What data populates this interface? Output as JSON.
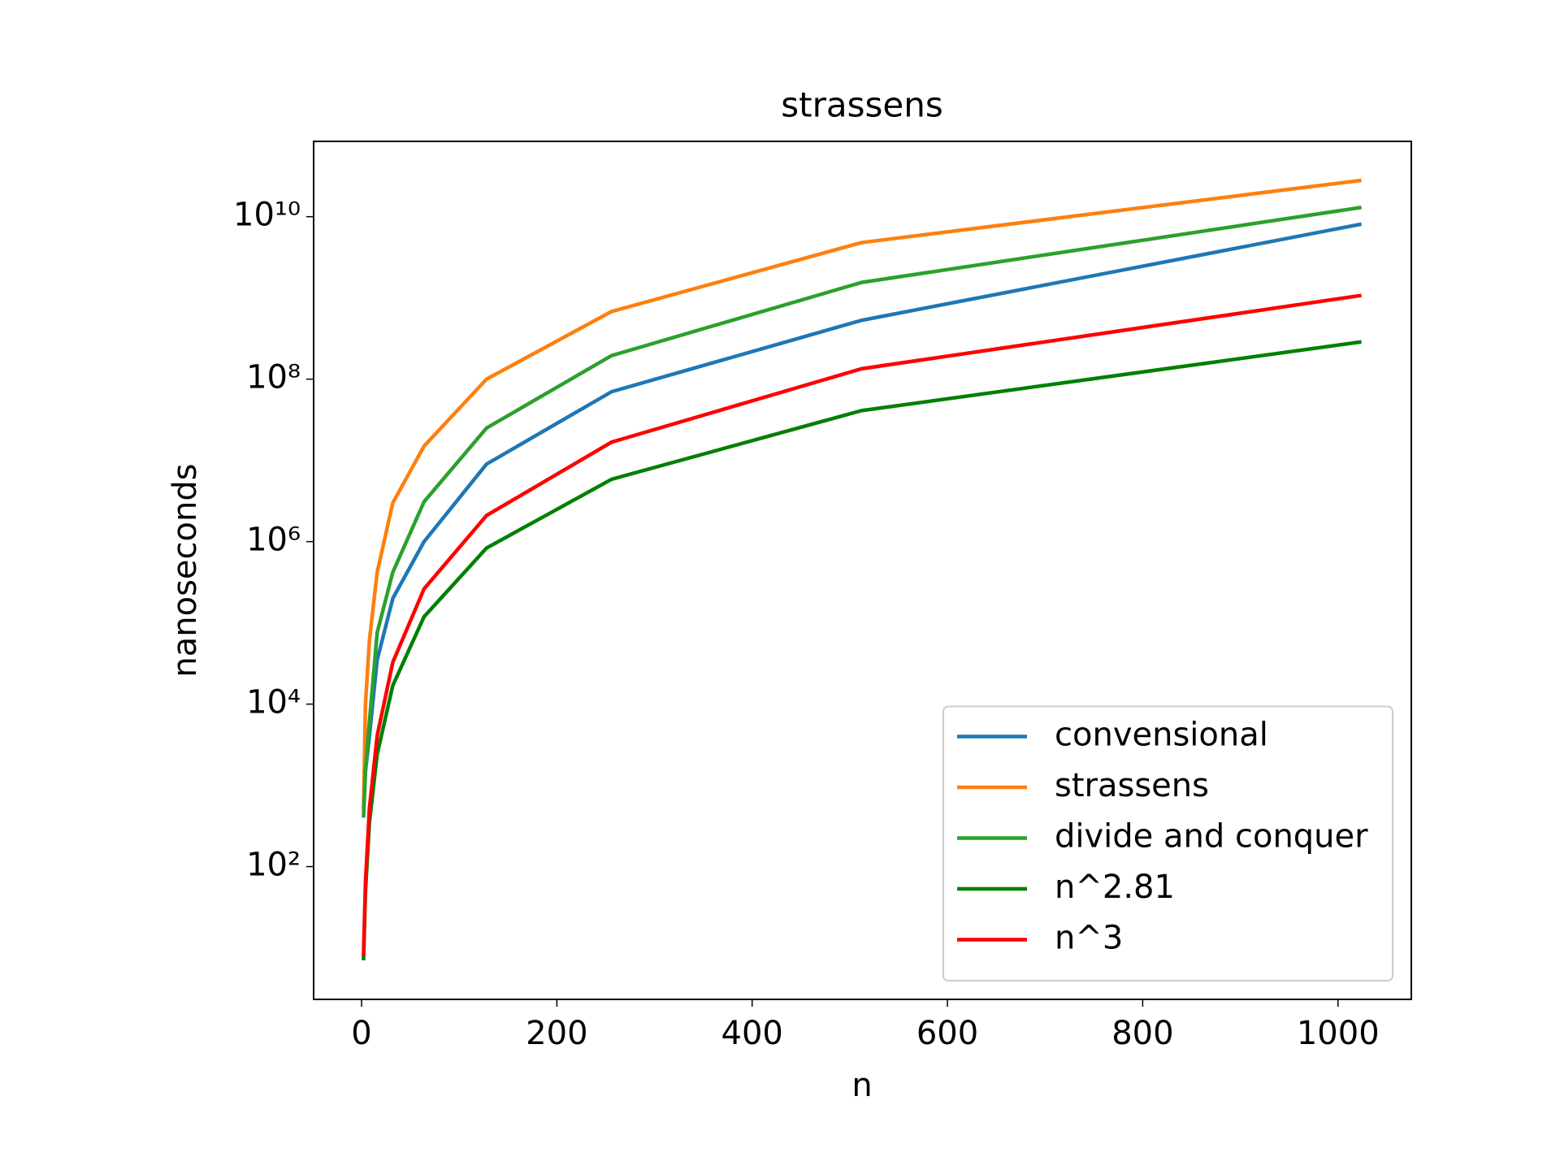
{
  "chart_data": {
    "type": "line",
    "title": "strassens",
    "x_label": "n",
    "y_label": "nanoseconds",
    "x": [
      2,
      4,
      8,
      16,
      32,
      64,
      128,
      256,
      512,
      1024
    ],
    "series": [
      {
        "name": "convensional",
        "color": "#1f77b4",
        "values": [
          500,
          1500,
          4000,
          35000,
          200000,
          1000000,
          9000000,
          70000000,
          530000000,
          8100000000
        ]
      },
      {
        "name": "strassens",
        "color": "#ff7f0e",
        "values": [
          500,
          10000,
          60000,
          420000,
          3000000,
          15000000,
          100000000,
          680000000,
          4800000000,
          28000000000
        ]
      },
      {
        "name": "divide and conquer",
        "color": "#2ca02c",
        "values": [
          400,
          1500,
          6000,
          76000,
          420000,
          3100000,
          25000000,
          195000000,
          1550000000,
          13000000000
        ]
      },
      {
        "name": "n^2.81",
        "color": "#008000",
        "values": [
          7.01,
          49.2,
          345,
          2418,
          16960,
          118950,
          834100,
          5850000,
          41000000,
          287700000
        ]
      },
      {
        "name": "n^3",
        "color": "#ff0000",
        "values": [
          8,
          64,
          512,
          4096,
          32768,
          262144,
          2097152,
          16777216,
          134217728,
          1073741824
        ]
      }
    ],
    "xlim": [
      -49.1,
      1075.1
    ],
    "xticks": [
      0,
      200,
      400,
      600,
      800,
      1000
    ],
    "ylim": [
      2.32,
      84500000000
    ],
    "yticks": [
      {
        "value": 100,
        "label": "10²"
      },
      {
        "value": 10000,
        "label": "10⁴"
      },
      {
        "value": 1000000,
        "label": "10⁶"
      },
      {
        "value": 100000000,
        "label": "10⁸"
      },
      {
        "value": 10000000000,
        "label": "10¹⁰"
      }
    ],
    "y_scale": "log",
    "grid": false,
    "legend": "lower right"
  }
}
